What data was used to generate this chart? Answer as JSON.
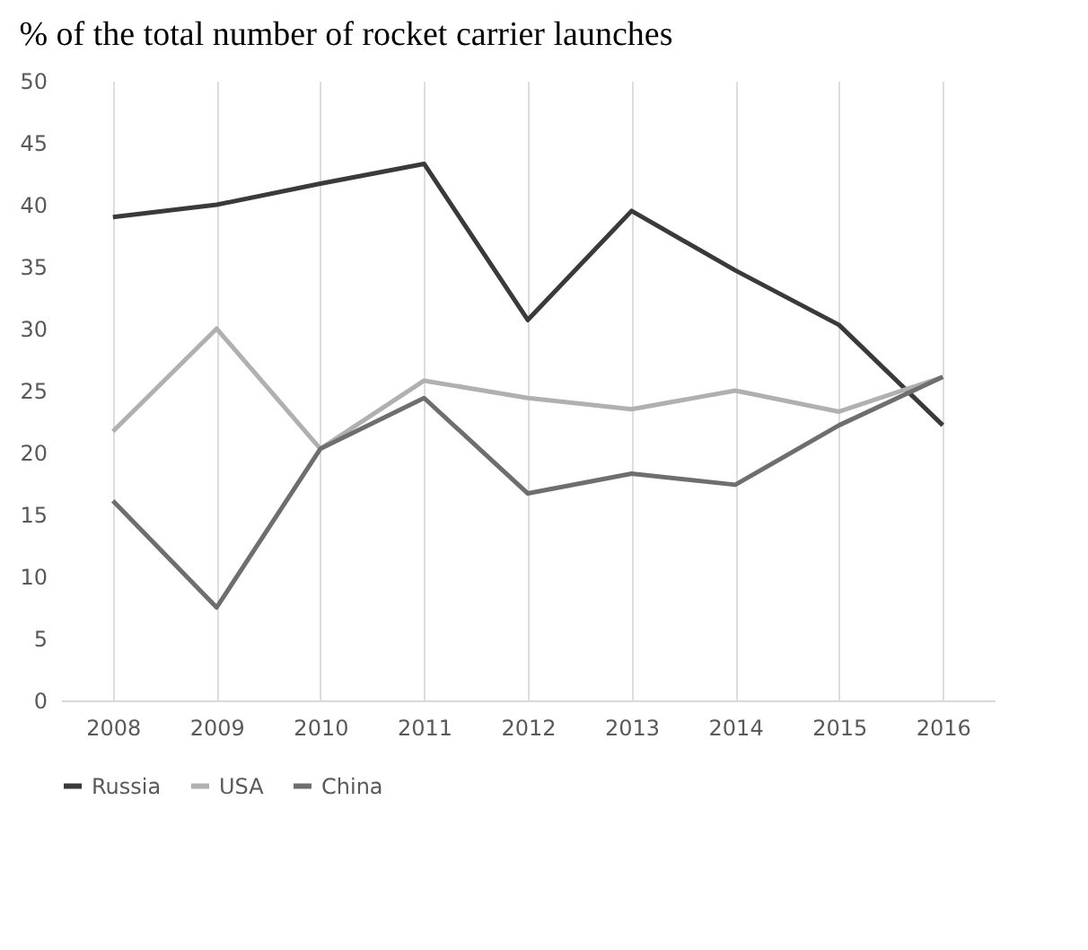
{
  "chart_data": {
    "type": "line",
    "title": "% of the total number of rocket carrier launches",
    "categories": [
      "2008",
      "2009",
      "2010",
      "2011",
      "2012",
      "2013",
      "2014",
      "2015",
      "2016"
    ],
    "series": [
      {
        "name": "Russia",
        "color": "#3a3a3a",
        "values": [
          39,
          40,
          41.7,
          43.3,
          30.7,
          39.5,
          34.7,
          30.3,
          22.2
        ]
      },
      {
        "name": "USA",
        "color": "#b0b0b0",
        "values": [
          21.7,
          30,
          20.3,
          25.8,
          24.4,
          23.5,
          25,
          23.3,
          26.1
        ]
      },
      {
        "name": "China",
        "color": "#6e6e6e",
        "values": [
          16.1,
          7.5,
          20.3,
          24.4,
          16.7,
          18.3,
          17.4,
          22.2,
          26.1
        ]
      }
    ],
    "ylim": [
      0,
      50
    ],
    "yticks": [
      0,
      5,
      10,
      15,
      20,
      25,
      30,
      35,
      40,
      45,
      50
    ],
    "grid": "x",
    "legend": "bottom",
    "marker": "none",
    "line_style": "solid"
  }
}
